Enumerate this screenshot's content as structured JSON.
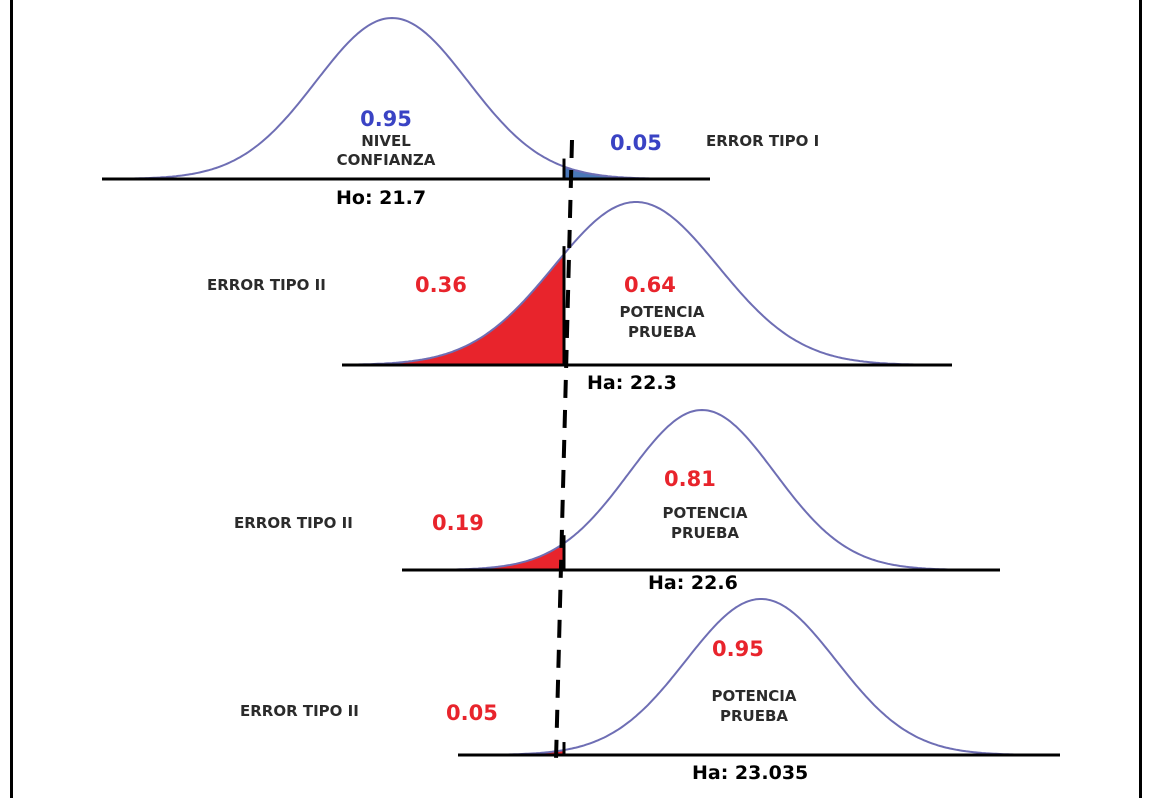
{
  "colors": {
    "curve": "#6e6eb4",
    "alpha_fill": "#4a78b8",
    "beta_fill": "#e8242c",
    "blue_text": "#3a43c4",
    "red_text": "#e8242c"
  },
  "panels": [
    {
      "mean_label": "Ho: 21.7",
      "nivel_confianza": {
        "value": "0.95",
        "line1": "NIVEL",
        "line2": "CONFIANZA"
      },
      "error_tipo_1": {
        "value": "0.05",
        "label": "ERROR TIPO I"
      }
    },
    {
      "mean_label": "Ha: 22.3",
      "error_tipo_2": {
        "value": "0.36",
        "label": "ERROR TIPO II"
      },
      "potencia": {
        "value": "0.64",
        "line1": "POTENCIA",
        "line2": "PRUEBA"
      }
    },
    {
      "mean_label": "Ha: 22.6",
      "error_tipo_2": {
        "value": "0.19",
        "label": "ERROR TIPO II"
      },
      "potencia": {
        "value": "0.81",
        "line1": "POTENCIA",
        "line2": "PRUEBA"
      }
    },
    {
      "mean_label": "Ha: 23.035",
      "error_tipo_2": {
        "value": "0.05",
        "label": "ERROR TIPO II"
      },
      "potencia": {
        "value": "0.95",
        "line1": "POTENCIA",
        "line2": "PRUEBA"
      }
    }
  ]
}
